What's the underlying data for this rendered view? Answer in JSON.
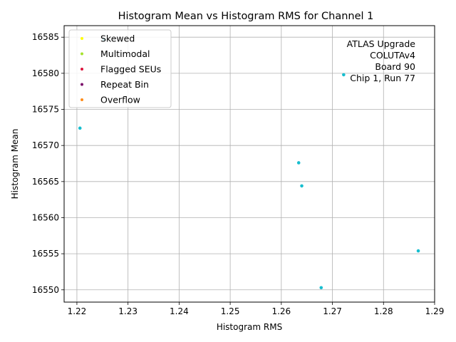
{
  "chart_data": {
    "type": "scatter",
    "title": "Histogram Mean vs Histogram RMS for Channel 1",
    "xlabel": "Histogram RMS",
    "ylabel": "Histogram Mean",
    "xlim": [
      1.2175,
      1.29
    ],
    "ylim": [
      16548.3,
      16586.6
    ],
    "xticks": [
      1.22,
      1.23,
      1.24,
      1.25,
      1.26,
      1.27,
      1.28,
      1.29
    ],
    "xtick_labels": [
      "1.22",
      "1.23",
      "1.24",
      "1.25",
      "1.26",
      "1.27",
      "1.28",
      "1.29"
    ],
    "yticks": [
      16550,
      16555,
      16560,
      16565,
      16570,
      16575,
      16580,
      16585
    ],
    "ytick_labels": [
      "16550",
      "16555",
      "16560",
      "16565",
      "16570",
      "16575",
      "16580",
      "16585"
    ],
    "grid": true,
    "legend_position": "top-left",
    "legend": [
      {
        "label": "Skewed",
        "color": "#ffff00"
      },
      {
        "label": "Multimodal",
        "color": "#a6e22e"
      },
      {
        "label": "Flagged SEUs",
        "color": "#dc143c"
      },
      {
        "label": "Repeat Bin",
        "color": "#7b0f6b"
      },
      {
        "label": "Overflow",
        "color": "#ff8c1a"
      }
    ],
    "series": [
      {
        "color": "#17becf",
        "points": [
          {
            "x": 1.2253,
            "y": 16584.7
          },
          {
            "x": 1.2722,
            "y": 16579.8
          },
          {
            "x": 1.2206,
            "y": 16572.4
          },
          {
            "x": 1.2634,
            "y": 16567.6
          },
          {
            "x": 1.264,
            "y": 16564.4
          },
          {
            "x": 1.2868,
            "y": 16555.4
          },
          {
            "x": 1.2678,
            "y": 16550.3
          }
        ]
      }
    ],
    "annotation_lines": [
      "ATLAS Upgrade",
      "COLUTAv4",
      "Board 90",
      "Chip 1, Run 77"
    ]
  }
}
